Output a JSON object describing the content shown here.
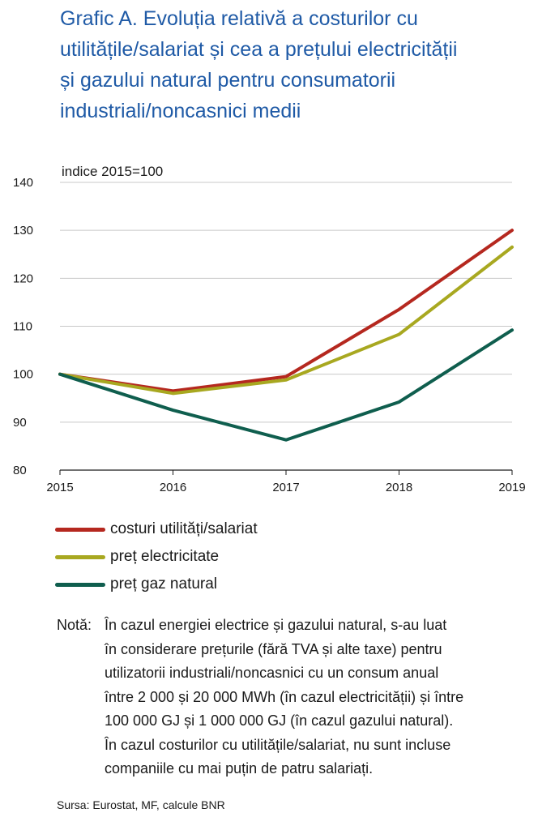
{
  "title_lines": [
    "Grafic A. Evoluția  relativă a costurilor cu",
    "utilitățile/salariat  și cea a prețului electricității",
    "și gazului natural pentru consumatorii",
    "industriali/noncasnici    medii"
  ],
  "chart_data": {
    "type": "line",
    "title": "Grafic A. Evoluția  relativă a costurilor cu utilitățile/salariat  și cea a prețului electricității și gazului natural pentru consumatorii industriali/noncasnici    medii",
    "ylabel": "indice 2015=100",
    "xlabel": "",
    "x": [
      "2015",
      "2016",
      "2017",
      "2018",
      "2019"
    ],
    "yticks": [
      "80",
      "90",
      "100",
      "110",
      "120",
      "130",
      "140"
    ],
    "ylim": [
      80,
      140
    ],
    "grid": true,
    "legend_position": "bottom-left",
    "series": [
      {
        "name": "costuri utilități/salariat",
        "color": "#b5281f",
        "values": [
          100,
          96.5,
          99.5,
          113.5,
          130
        ]
      },
      {
        "name": "preț electricitate",
        "color": "#a8a820",
        "values": [
          100,
          96,
          98.8,
          108.3,
          126.5
        ]
      },
      {
        "name": "preț gaz natural",
        "color": "#0f5e4e",
        "values": [
          100,
          92.5,
          86.3,
          94.2,
          109.2
        ]
      }
    ]
  },
  "note": {
    "label": "Notă:",
    "lines": [
      "În cazul energiei electrice  și gazului natural, s-au luat",
      "în considerare prețurile (fără TVA și alte taxe) pentru",
      "utilizatorii industriali/noncasnici  cu un consum anual",
      "între 2 000 și 20 000 MWh (în cazul electricității)  și între",
      "100 000 GJ și 1 000 000 GJ (în cazul gazului natural).",
      "În cazul costurilor cu utilitățile/salariat,  nu sunt incluse",
      "companiile cu mai puțin de patru salariați."
    ]
  },
  "source": "Sursa: Eurostat, MF, calcule BNR"
}
